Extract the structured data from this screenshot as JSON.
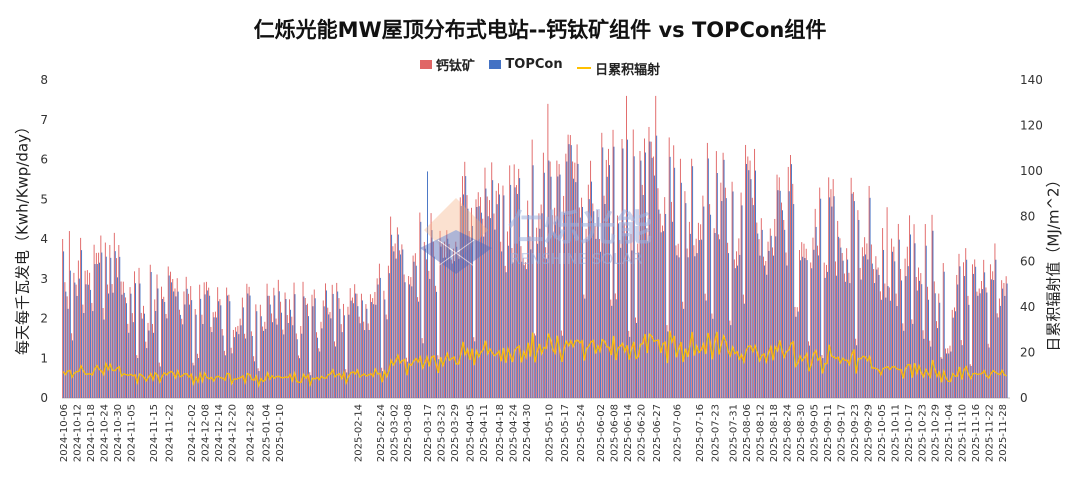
{
  "chart_data": {
    "type": "bar",
    "title": "仁烁光能MW屋顶分布式电站--钙钛矿组件 vs TOPCon组件",
    "ylabel": "每天每千瓦发电（Kwh/Kwp/day）",
    "y2label": "日累积辐射值（MJ/m^2）",
    "ylim": [
      0,
      8
    ],
    "y2lim": [
      0,
      140
    ],
    "yticks": [
      "0",
      "1",
      "2",
      "3",
      "4",
      "5",
      "6",
      "7",
      "8"
    ],
    "y2ticks": [
      "0",
      "20",
      "40",
      "60",
      "80",
      "100",
      "120",
      "140"
    ],
    "x_range": [
      "2024-10-06",
      "2025-12-01"
    ],
    "xticks": [
      "2024-10-06",
      "2024-10-12",
      "2024-10-18",
      "2024-10-24",
      "2024-10-30",
      "2024-11-05",
      "2024-11-15",
      "2024-11-22",
      "2024-12-02",
      "2024-12-08",
      "2024-12-14",
      "2024-12-20",
      "2024-12-28",
      "2025-01-04",
      "2025-01-10",
      "2025-02-14",
      "2025-02-24",
      "2025-03-02",
      "2025-03-08",
      "2025-03-17",
      "2025-03-23",
      "2025-03-29",
      "2025-04-05",
      "2025-04-11",
      "2025-04-18",
      "2025-04-24",
      "2025-04-30",
      "2025-05-10",
      "2025-05-17",
      "2025-05-24",
      "2025-06-02",
      "2025-06-08",
      "2025-06-14",
      "2025-06-20",
      "2025-06-27",
      "2025-07-06",
      "2025-07-16",
      "2025-07-23",
      "2025-07-31",
      "2025-08-06",
      "2025-08-12",
      "2025-08-18",
      "2025-08-24",
      "2025-08-30",
      "2025-09-05",
      "2025-09-11",
      "2025-09-17",
      "2025-09-23",
      "2025-09-29",
      "2025-10-05",
      "2025-10-11",
      "2025-10-17",
      "2025-10-23",
      "2025-10-29",
      "2025-11-04",
      "2025-11-10",
      "2025-11-16",
      "2025-11-22",
      "2025-11-28"
    ],
    "grid": false,
    "legend_position": "top",
    "series": [
      {
        "name": "钙钛矿",
        "type": "bar",
        "axis": "left",
        "color": "#e06666",
        "monthly_typical": {
          "2024-10": 3.2,
          "2024-11": 2.6,
          "2024-12": 2.3,
          "2025-01": 2.3,
          "2025-02": 2.6,
          "2025-03": 3.6,
          "2025-04": 4.7,
          "2025-05": 5.3,
          "2025-06": 5.4,
          "2025-07": 5.3,
          "2025-08": 4.9,
          "2025-09": 4.3,
          "2025-10": 3.6,
          "2025-11": 3.0
        },
        "peaks": [
          {
            "date": "2024-10-09",
            "value": 4.2
          },
          {
            "date": "2025-05-10",
            "value": 7.4
          },
          {
            "date": "2025-06-14",
            "value": 7.6
          },
          {
            "date": "2025-06-27",
            "value": 7.6
          },
          {
            "date": "2025-10-08",
            "value": 4.8
          }
        ]
      },
      {
        "name": "TOPCon",
        "type": "bar",
        "axis": "left",
        "color": "#4472c4",
        "monthly_typical": {
          "2024-10": 2.9,
          "2024-11": 2.4,
          "2024-12": 2.1,
          "2025-01": 2.1,
          "2025-02": 2.4,
          "2025-03": 3.4,
          "2025-04": 4.4,
          "2025-05": 5.0,
          "2025-06": 5.1,
          "2025-07": 5.0,
          "2025-08": 4.6,
          "2025-09": 4.0,
          "2025-10": 3.3,
          "2025-11": 2.8
        },
        "peaks": [
          {
            "date": "2025-03-17",
            "value": 5.7
          },
          {
            "date": "2025-06-14",
            "value": 6.5
          },
          {
            "date": "2025-06-27",
            "value": 6.6
          }
        ]
      },
      {
        "name": "日累积辐射",
        "type": "line",
        "axis": "right",
        "color": "#ffc000",
        "monthly_typical": {
          "2024-10": 12,
          "2024-11": 10,
          "2024-12": 9,
          "2025-01": 9,
          "2025-02": 11,
          "2025-03": 16,
          "2025-04": 20,
          "2025-05": 23,
          "2025-06": 24,
          "2025-07": 24,
          "2025-08": 21,
          "2025-09": 18,
          "2025-10": 13,
          "2025-11": 11
        }
      }
    ]
  },
  "watermark": {
    "brand_cn": "仁烁光能",
    "brand_en": "RENSHINE SOLAR"
  }
}
